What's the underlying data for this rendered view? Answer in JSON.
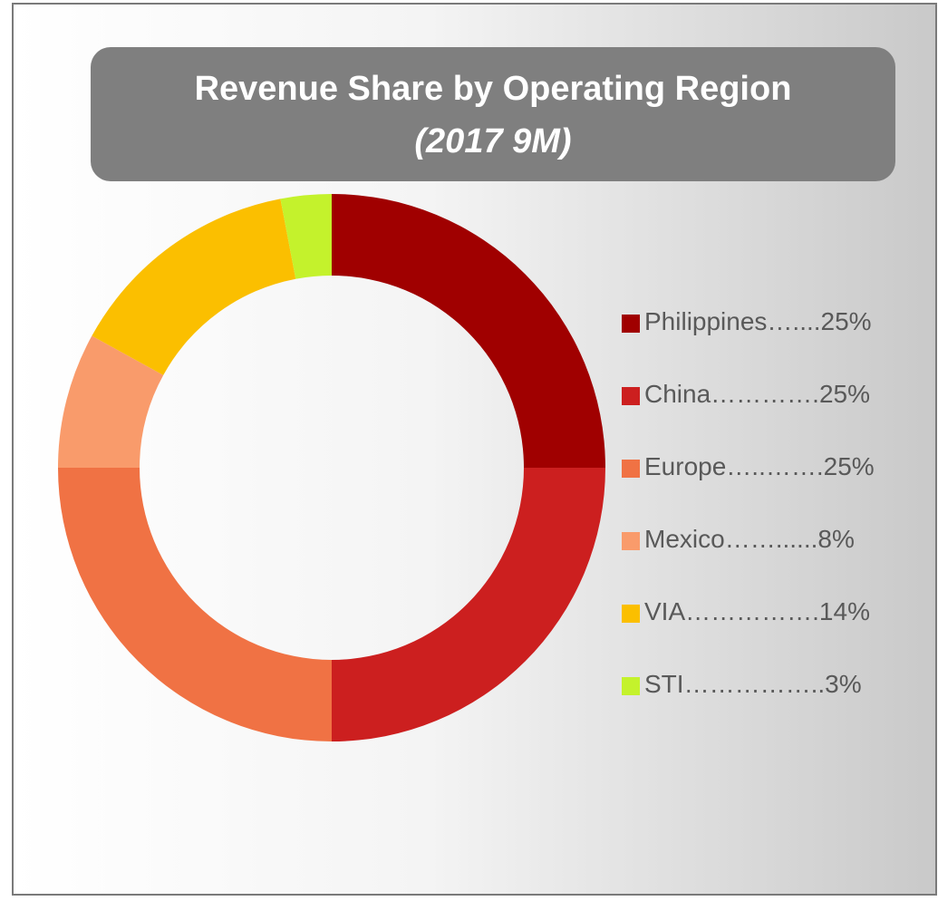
{
  "chart_data": {
    "type": "donut",
    "title": "Revenue Share by Operating Region",
    "subtitle": "(2017 9M)",
    "categories": [
      "Philippines",
      "China",
      "Europe",
      "Mexico",
      "VIA",
      "STI"
    ],
    "values": [
      25,
      25,
      25,
      8,
      14,
      3
    ],
    "value_labels": [
      "…....25%",
      "………….25%",
      "…..…….25%",
      "……......8%",
      "…………….14%",
      "……………..3%"
    ],
    "colors": [
      "#a00000",
      "#cc1f1f",
      "#f07244",
      "#f99b6b",
      "#fbbf00",
      "#c4f22c"
    ],
    "legend_position": "right"
  }
}
